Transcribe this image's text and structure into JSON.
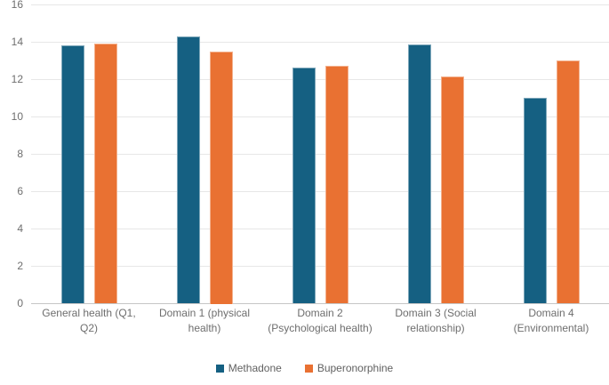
{
  "chart_data": {
    "type": "bar",
    "title": "",
    "xlabel": "",
    "ylabel": "",
    "categories": [
      "General health (Q1, Q2)",
      "Domain 1 (physical health)",
      "Domain 2 (Psychological health)",
      "Domain 3 (Social relationship)",
      "Domain 4 (Environmental)"
    ],
    "series": [
      {
        "name": "Methadone",
        "color": "#156082",
        "values": [
          13.8,
          14.3,
          12.6,
          13.85,
          11.0
        ]
      },
      {
        "name": "Buperonorphine",
        "color": "#E97132",
        "values": [
          13.9,
          13.5,
          12.7,
          12.15,
          13.0
        ]
      }
    ],
    "ylim": [
      0,
      16
    ],
    "yticks": [
      0,
      2,
      4,
      6,
      8,
      10,
      12,
      14,
      16
    ],
    "grid": true,
    "legend_position": "bottom"
  },
  "colors": {
    "gridline": "#e7e7e7",
    "axis_line": "#c6c6c6",
    "tick_text": "#6e6e6e",
    "legend_text": "#616161"
  }
}
